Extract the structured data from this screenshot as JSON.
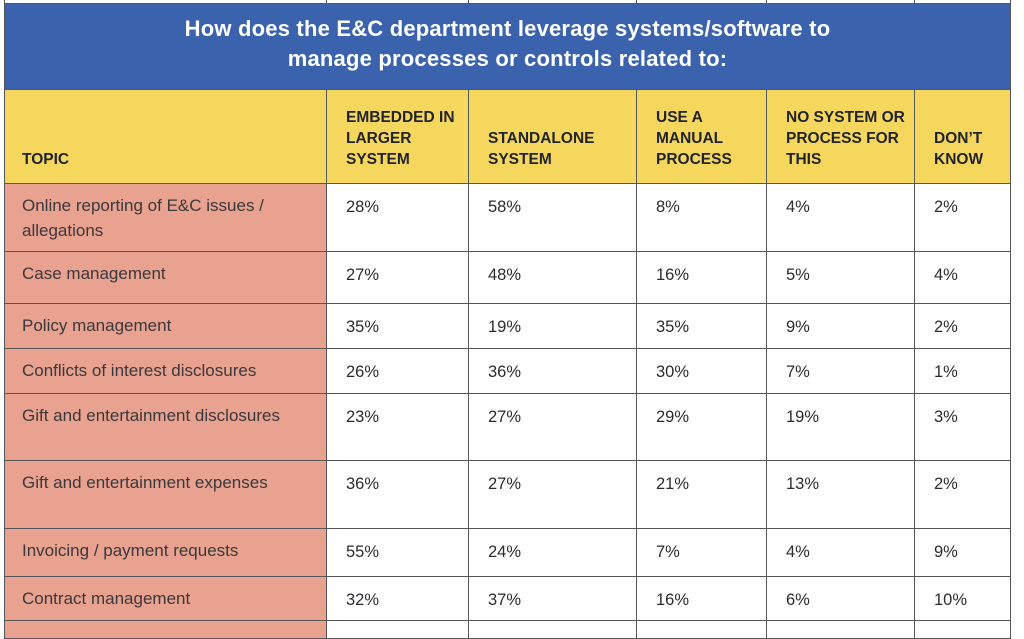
{
  "banner": {
    "title_line1": "How does the E&C department leverage systems/software to",
    "title_line2": "manage processes or controls related to:"
  },
  "chart_data": {
    "type": "table",
    "title": "How does the E&C department leverage systems/software to manage processes or controls related to:",
    "columns": [
      "TOPIC",
      "EMBEDDED IN LARGER SYSTEM",
      "STANDALONE SYSTEM",
      "USE A MANUAL PROCESS",
      "NO SYSTEM OR PROCESS FOR THIS",
      "DON’T KNOW"
    ],
    "rows": [
      {
        "topic": "Online reporting of E&C issues / allegations",
        "values": [
          "28%",
          "58%",
          "8%",
          "4%",
          "2%"
        ]
      },
      {
        "topic": "Case management",
        "values": [
          "27%",
          "48%",
          "16%",
          "5%",
          "4%"
        ]
      },
      {
        "topic": "Policy management",
        "values": [
          "35%",
          "19%",
          "35%",
          "9%",
          "2%"
        ]
      },
      {
        "topic": "Conflicts of interest disclosures",
        "values": [
          "26%",
          "36%",
          "30%",
          "7%",
          "1%"
        ]
      },
      {
        "topic": "Gift and entertainment disclosures",
        "values": [
          "23%",
          "27%",
          "29%",
          "19%",
          "3%"
        ]
      },
      {
        "topic": "Gift and entertainment expenses",
        "values": [
          "36%",
          "27%",
          "21%",
          "13%",
          "2%"
        ]
      },
      {
        "topic": "Invoicing / payment requests",
        "values": [
          "55%",
          "24%",
          "7%",
          "4%",
          "9%"
        ]
      },
      {
        "topic": "Contract management",
        "values": [
          "32%",
          "37%",
          "16%",
          "6%",
          "10%"
        ]
      }
    ]
  },
  "colors": {
    "banner_blue": "#3b63ad",
    "header_yellow": "#f6d75e",
    "topic_salmon": "#e9a28f",
    "border_gray": "#55565a",
    "text_dark": "#222327",
    "title_white": "#ffffff"
  }
}
